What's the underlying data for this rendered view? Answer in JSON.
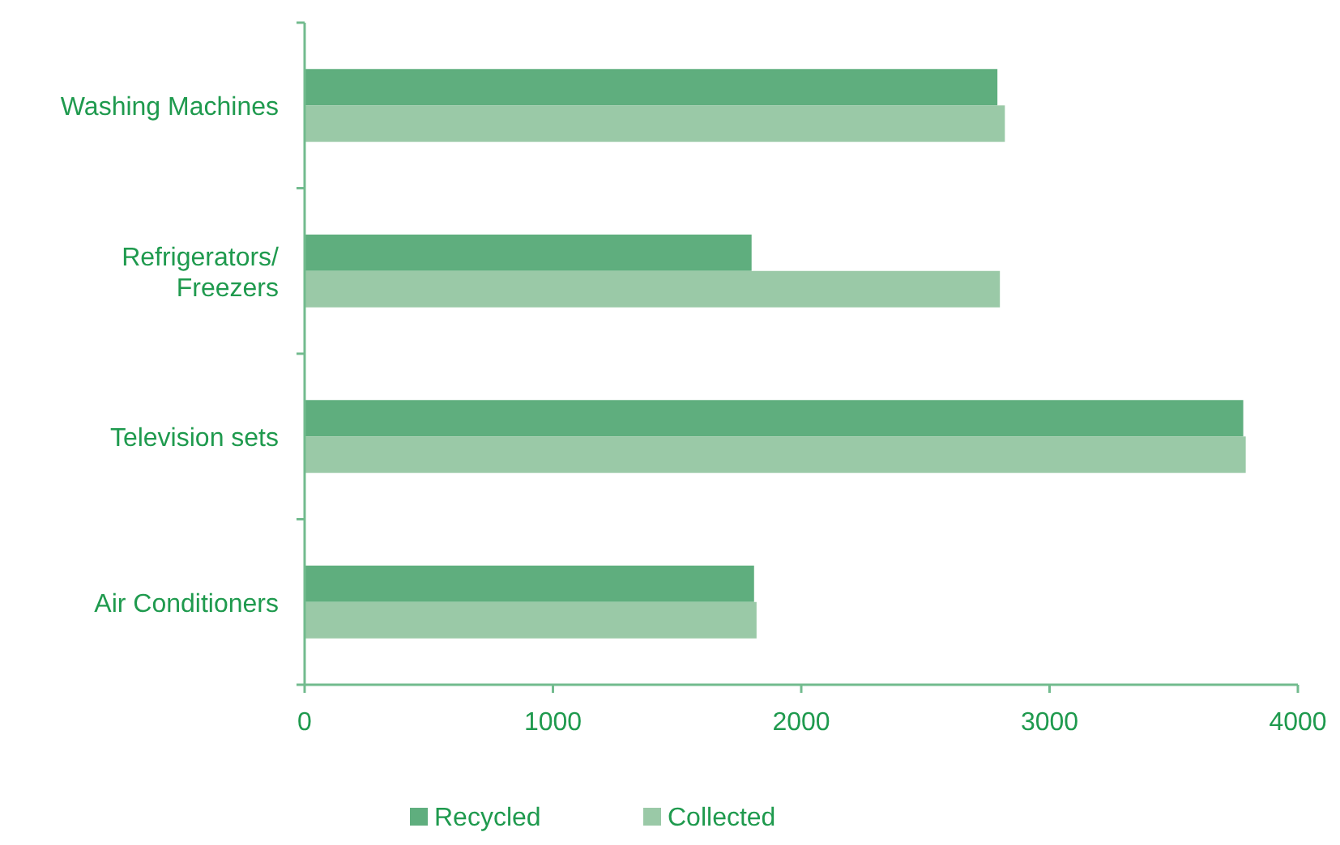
{
  "chart_data": {
    "type": "bar",
    "orientation": "horizontal",
    "categories": [
      "Washing Machines",
      "Refrigerators/ Freezers",
      "Television sets",
      "Air Conditioners"
    ],
    "series": [
      {
        "name": "Recycled",
        "color": "#5fae7e",
        "values": [
          2790,
          1800,
          3780,
          1810
        ]
      },
      {
        "name": "Collected",
        "color": "#9ac9a7",
        "values": [
          2820,
          2800,
          3790,
          1820
        ]
      }
    ],
    "xlim": [
      0,
      4000
    ],
    "xticks": [
      0,
      1000,
      2000,
      3000,
      4000
    ],
    "grid": false,
    "legend": "bottom"
  }
}
